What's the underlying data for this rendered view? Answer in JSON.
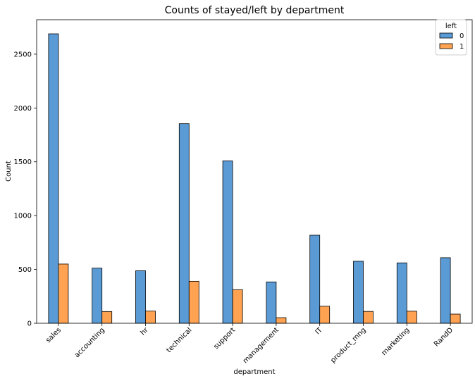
{
  "chart_data": {
    "type": "bar",
    "title": "Counts of stayed/left by department",
    "xlabel": "department",
    "ylabel": "Count",
    "categories": [
      "sales",
      "accounting",
      "hr",
      "technical",
      "support",
      "management",
      "IT",
      "product_mng",
      "marketing",
      "RandD"
    ],
    "series": [
      {
        "name": "0",
        "color": "#5b9bd5",
        "values": [
          2689,
          512,
          488,
          1854,
          1509,
          384,
          818,
          576,
          561,
          609
        ]
      },
      {
        "name": "1",
        "color": "#ffa352",
        "values": [
          550,
          109,
          113,
          390,
          312,
          52,
          158,
          110,
          112,
          85
        ]
      }
    ],
    "ylim": [
      0,
      2820
    ],
    "yticks": [
      0,
      500,
      1000,
      1500,
      2000,
      2500
    ],
    "legend": {
      "title": "left",
      "position": "top-right"
    },
    "grid": false
  }
}
